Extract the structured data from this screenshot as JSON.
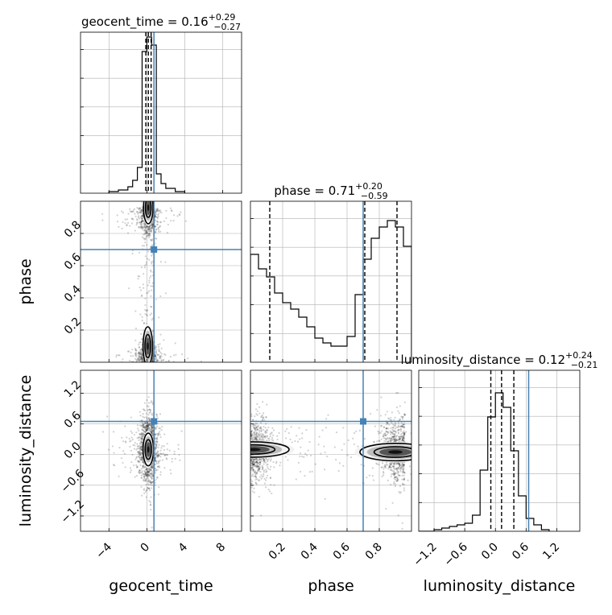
{
  "chart_data": [
    {
      "type": "histogram",
      "param": "geocent_time",
      "title": {
        "name": "geocent_time",
        "median": "0.16",
        "plus": "+0.29",
        "minus": "−0.27"
      },
      "xlim": [
        -7,
        10
      ],
      "ylim": [
        0,
        1
      ],
      "x_ticks": [
        "−4",
        "0",
        "4",
        "8"
      ],
      "x_tick_values": [
        -4,
        0,
        4,
        8
      ],
      "bin_edges": [
        -4.0,
        -3.0,
        -2.0,
        -1.5,
        -1.0,
        -0.5,
        0.0,
        0.5,
        1.0,
        1.5,
        2.0,
        3.0,
        4.0
      ],
      "counts": [
        0.01,
        0.02,
        0.04,
        0.08,
        0.16,
        0.88,
        0.97,
        0.92,
        0.12,
        0.06,
        0.03,
        0.01
      ],
      "quantiles": [
        -0.11,
        0.16,
        0.45
      ],
      "truth": 0.75
    },
    {
      "type": "histogram",
      "param": "phase",
      "title": {
        "name": "phase",
        "median": "0.71",
        "plus": "+0.20",
        "minus": "−0.59"
      },
      "xlim": [
        0.0,
        1.0
      ],
      "ylim": [
        0,
        1
      ],
      "x_ticks": [
        "0.2",
        "0.4",
        "0.6",
        "0.8"
      ],
      "x_tick_values": [
        0.2,
        0.4,
        0.6,
        0.8
      ],
      "bin_edges": [
        0.0,
        0.05,
        0.1,
        0.15,
        0.2,
        0.25,
        0.3,
        0.35,
        0.4,
        0.45,
        0.5,
        0.55,
        0.6,
        0.65,
        0.7,
        0.75,
        0.8,
        0.85,
        0.9,
        0.95,
        1.0
      ],
      "counts": [
        0.67,
        0.58,
        0.53,
        0.43,
        0.37,
        0.33,
        0.28,
        0.22,
        0.15,
        0.12,
        0.1,
        0.1,
        0.16,
        0.42,
        0.64,
        0.77,
        0.84,
        0.88,
        0.84,
        0.72
      ],
      "quantiles": [
        0.12,
        0.71,
        0.91
      ],
      "truth": 0.7
    },
    {
      "type": "histogram",
      "param": "luminosity_distance",
      "title": {
        "name": "luminosity_distance",
        "median": "0.12",
        "plus": "+0.24",
        "minus": "−0.21"
      },
      "xlim": [
        -1.5,
        1.65
      ],
      "ylim": [
        0,
        1
      ],
      "x_ticks": [
        "−1.2",
        "−0.6",
        "0.0",
        "0.6",
        "1.2"
      ],
      "x_tick_values": [
        -1.2,
        -0.6,
        0.0,
        0.6,
        1.2
      ],
      "bin_edges": [
        -1.5,
        -1.35,
        -1.2,
        -1.05,
        -0.9,
        -0.75,
        -0.6,
        -0.45,
        -0.3,
        -0.15,
        0.0,
        0.15,
        0.3,
        0.45,
        0.6,
        0.75,
        0.9,
        1.05
      ],
      "counts": [
        0.0,
        0.0,
        0.01,
        0.02,
        0.03,
        0.04,
        0.05,
        0.1,
        0.38,
        0.71,
        0.86,
        0.77,
        0.5,
        0.22,
        0.08,
        0.04,
        0.01
      ],
      "quantiles": [
        -0.09,
        0.12,
        0.36
      ],
      "truth": 0.65
    },
    {
      "type": "scatter",
      "x_param": "geocent_time",
      "y_param": "phase",
      "xlim": [
        -7,
        10
      ],
      "ylim": [
        0.0,
        1.0
      ],
      "y_ticks": [
        "0.2",
        "0.4",
        "0.6",
        "0.8"
      ],
      "y_tick_values": [
        0.2,
        0.4,
        0.6,
        0.8
      ],
      "truth": [
        0.75,
        0.7
      ]
    },
    {
      "type": "scatter",
      "x_param": "geocent_time",
      "y_param": "luminosity_distance",
      "xlim": [
        -7,
        10
      ],
      "ylim": [
        -1.5,
        1.65
      ],
      "y_ticks": [
        "−1.2",
        "−0.6",
        "0.0",
        "0.6",
        "1.2"
      ],
      "y_tick_values": [
        -1.2,
        -0.6,
        0.0,
        0.6,
        1.2
      ],
      "truth": [
        0.75,
        0.65
      ]
    },
    {
      "type": "scatter",
      "x_param": "phase",
      "y_param": "luminosity_distance",
      "xlim": [
        0.0,
        1.0
      ],
      "ylim": [
        -1.5,
        1.65
      ],
      "truth": [
        0.7,
        0.65
      ]
    }
  ],
  "axis_labels": {
    "geocent_time": "geocent_time",
    "phase": "phase",
    "luminosity_distance": "luminosity_distance"
  },
  "colors": {
    "truth": "#4682b4",
    "hist": "#000000",
    "grid": "#b0b0b0",
    "points": "#000000"
  },
  "grid": true
}
